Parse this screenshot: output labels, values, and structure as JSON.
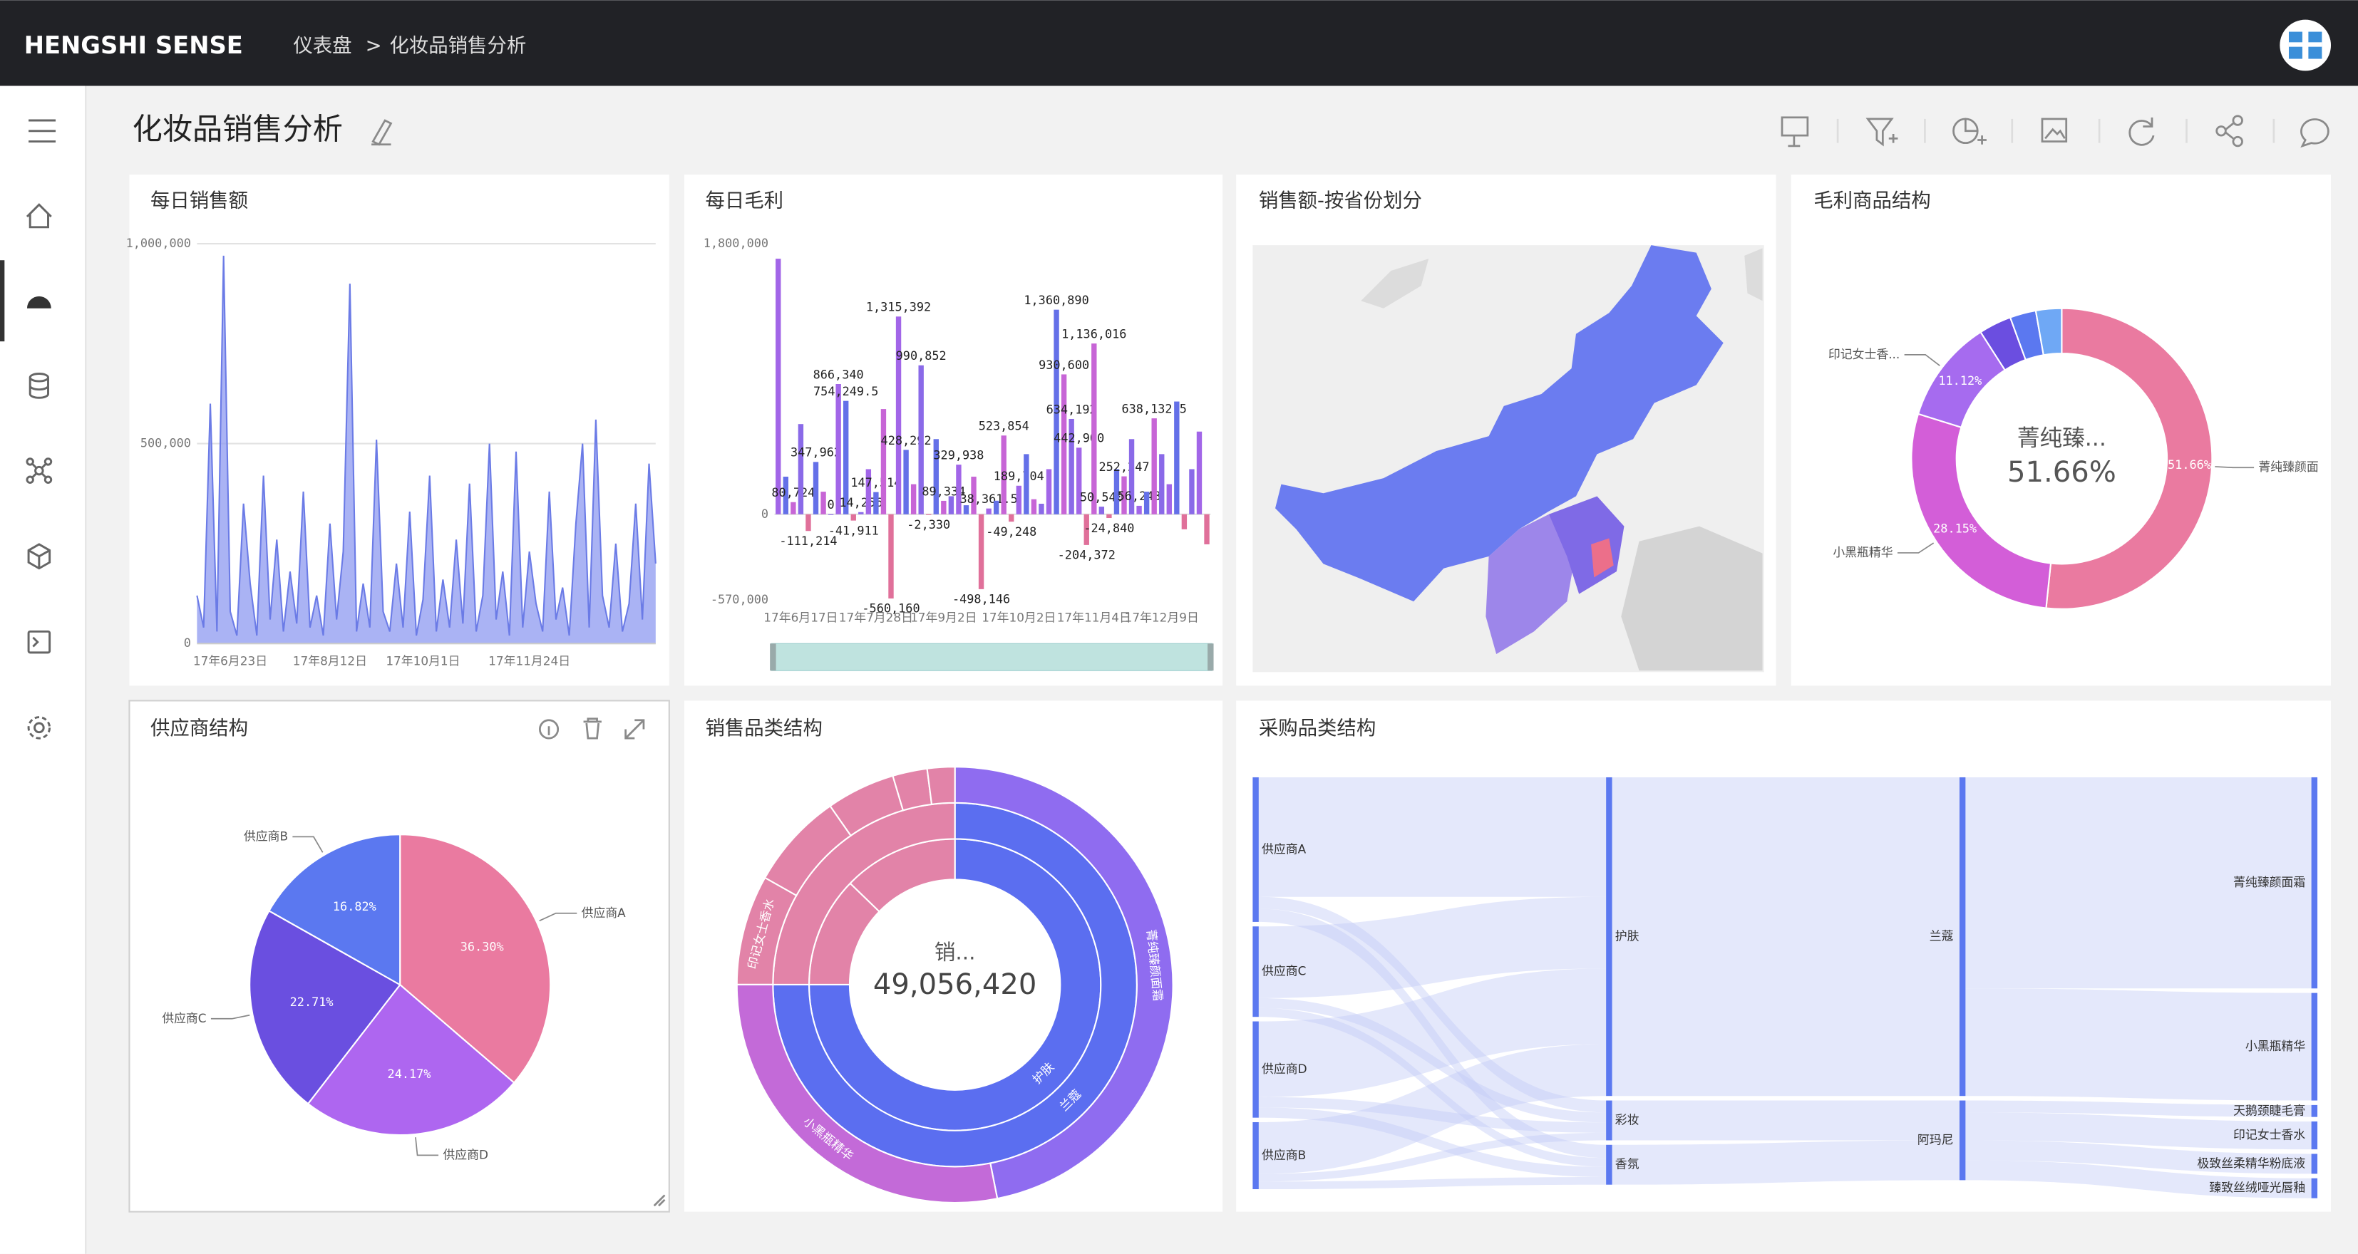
{
  "header": {
    "brand": "HENGSHI SENSE",
    "breadcrumb": [
      "仪表盘",
      "化妆品销售分析"
    ],
    "separator": ">"
  },
  "page": {
    "title": "化妆品销售分析"
  },
  "widgets": [
    {
      "title": "每日销售额",
      "chart": {
        "type": "area",
        "color": "#8d9af0",
        "line_color": "#6b7be6",
        "ylim": [
          0,
          1000000
        ],
        "yticks": [
          0,
          {
            "value": 500000,
            "label": "500,000"
          },
          {
            "value": 1000000,
            "label": "1,000,000"
          }
        ],
        "grid": true,
        "categories": [
          null,
          null,
          null,
          null,
          null,
          "17年6月23日",
          null,
          null,
          null,
          null,
          null,
          null,
          null,
          null,
          null,
          null,
          null,
          null,
          null,
          null,
          "17年8月12日",
          null,
          null,
          null,
          null,
          null,
          null,
          null,
          null,
          null,
          null,
          null,
          null,
          null,
          "17年10月1日",
          null,
          null,
          null,
          null,
          null,
          null,
          null,
          null,
          null,
          null,
          null,
          null,
          null,
          null,
          null,
          "17年11月24日",
          null,
          null,
          null,
          null,
          null,
          null,
          null,
          null,
          null,
          null,
          null,
          null,
          null,
          null,
          null,
          null,
          null,
          null,
          null
        ],
        "values": [
          120000,
          40000,
          600000,
          30000,
          970000,
          80000,
          20000,
          350000,
          150000,
          20000,
          420000,
          60000,
          260000,
          30000,
          180000,
          50000,
          380000,
          40000,
          120000,
          20000,
          300000,
          60000,
          230000,
          900000,
          30000,
          150000,
          40000,
          510000,
          80000,
          30000,
          200000,
          40000,
          330000,
          20000,
          110000,
          420000,
          30000,
          160000,
          40000,
          260000,
          50000,
          400000,
          30000,
          120000,
          500000,
          60000,
          180000,
          20000,
          480000,
          40000,
          230000,
          100000,
          30000,
          380000,
          60000,
          140000,
          20000,
          300000,
          500000,
          40000,
          560000,
          120000,
          40000,
          250000,
          30000,
          100000,
          350000,
          60000,
          450000,
          200000
        ]
      }
    },
    {
      "title": "每日毛利",
      "chart": {
        "type": "bar",
        "colors": [
          "#a266e8",
          "#6470e8",
          "#c765d6",
          "#8a6ae8"
        ],
        "negative_color": "#e0709a",
        "ylim": [
          -570000,
          1800000
        ],
        "yticks": [
          {
            "value": -570000,
            "label": "-570,000"
          },
          0,
          {
            "value": 1800000,
            "label": "1,800,000"
          }
        ],
        "categories": [
          null,
          null,
          null,
          "17年6月17日",
          null,
          null,
          null,
          null,
          null,
          null,
          null,
          null,
          null,
          "17年7月28日",
          null,
          null,
          null,
          null,
          null,
          null,
          null,
          null,
          "17年9月2日",
          null,
          null,
          null,
          null,
          null,
          null,
          null,
          null,
          null,
          "17年10月2日",
          null,
          null,
          null,
          null,
          null,
          null,
          null,
          null,
          null,
          "17年11月4日",
          null,
          null,
          null,
          null,
          null,
          null,
          null,
          null,
          "17年12月9日",
          null,
          null,
          null,
          null,
          null,
          null
        ],
        "values": [
          1700000,
          250000,
          80724,
          600000,
          -111214,
          347962,
          150000,
          0,
          866340,
          754249.5,
          -41911,
          14256,
          300000,
          147514,
          700000,
          -560160,
          1315392,
          428292,
          200000,
          990852,
          -2330,
          500000,
          89334,
          120000,
          329938,
          60000,
          250000,
          -498146,
          38361.5,
          90000,
          523854,
          -49248,
          189704,
          400000,
          100000,
          70000,
          300000,
          1360890,
          930600,
          634192,
          442900,
          -204372,
          1136016,
          50540,
          -24840,
          300000,
          252247,
          500000,
          56248,
          150000,
          638132.5,
          400000,
          200000,
          750000,
          -100000,
          300000,
          550000,
          -200000
        ],
        "value_labels": [
          null,
          null,
          "80,724",
          null,
          "-111,214",
          "347,962",
          null,
          "0",
          "866,340",
          "754,249.5",
          "-41,911",
          "14,256",
          null,
          "147,514",
          null,
          "-560,160",
          "1,315,392",
          "428,292",
          null,
          "990,852",
          "-2,330",
          null,
          "89,334",
          null,
          "329,938",
          null,
          null,
          "-498,146",
          "38,361.5",
          null,
          "523,854",
          "-49,248",
          "189,704",
          null,
          null,
          null,
          null,
          "1,360,890",
          "930,600",
          "634,192",
          "442,900",
          "-204,372",
          "1,136,016",
          "50,540",
          "-24,840",
          null,
          "252,247",
          null,
          "56,248",
          null,
          "638,132.5",
          null,
          null,
          null,
          null,
          null,
          null,
          null
        ]
      }
    },
    {
      "title": "销售额-按省份划分",
      "chart": {
        "type": "map"
      }
    },
    {
      "title": "毛利商品结构",
      "chart": {
        "type": "donut",
        "names": [
          "菁纯臻颜面",
          "小黑瓶精华",
          "印记女士香...",
          null,
          null,
          null
        ],
        "values": [
          51.66,
          28.15,
          11.12,
          3.5,
          2.8,
          2.77
        ],
        "value_labels": [
          "51.66%",
          "28.15%",
          "11.12%",
          null,
          null,
          null
        ],
        "colors": [
          "#ea7aa0",
          "#d35ed8",
          "#a66bef",
          "#6b4ee0",
          "#5b78f0",
          "#6fa8f5"
        ],
        "center_label": "菁纯臻..."
      }
    },
    {
      "title": "供应商结构",
      "chart": {
        "type": "pie",
        "names": [
          "供应商A",
          "供应商D",
          "供应商C",
          "供应商B"
        ],
        "values": [
          36.3,
          24.17,
          22.71,
          16.82
        ],
        "value_labels": [
          "36.30%",
          "24.17%",
          "22.71%",
          "16.82%"
        ],
        "colors": [
          "#ea7aa0",
          "#ae66f0",
          "#6a4fe0",
          "#5b78f0"
        ]
      }
    },
    {
      "title": "销售品类结构",
      "chart": {
        "type": "sunburst",
        "center_label": "销...",
        "center_value": 49056420,
        "center_value_label": "49,056,420",
        "rings": [
          [
            {
              "name": "护肤",
              "value": 36800000,
              "color": "#5b6ef0"
            },
            {
              "name": null,
              "value": 6000000,
              "color": "#e283a8"
            },
            {
              "name": null,
              "value": 6256420,
              "color": "#e283a8"
            }
          ],
          [
            {
              "name": "兰蔻",
              "value": 36800000,
              "color": "#5b6ef0"
            },
            {
              "name": null,
              "value": 12256420,
              "color": "#e283a8"
            }
          ],
          [
            {
              "name": "菁纯臻颜面霜",
              "value": 23000000,
              "color": "#8f6cf0"
            },
            {
              "name": "小黑瓶精华",
              "value": 13800000,
              "color": "#c36ad8"
            },
            {
              "name": "印记女士香水",
              "value": 4000000,
              "color": "#e283a8"
            },
            {
              "name": null,
              "value": 3500000,
              "color": "#e283a8"
            },
            {
              "name": null,
              "value": 2500000,
              "color": "#e283a8"
            },
            {
              "name": null,
              "value": 1256420,
              "color": "#e283a8"
            },
            {
              "name": null,
              "value": 1000000,
              "color": "#e283a8"
            }
          ]
        ]
      }
    },
    {
      "title": "采购品类结构",
      "chart": {
        "type": "sankey",
        "levels": [
          [
            "供应商A",
            "供应商C",
            "供应商D",
            "供应商B"
          ],
          [
            "护肤",
            "彩妆",
            "香氛"
          ],
          [
            "兰蔻",
            "阿玛尼"
          ],
          [
            "菁纯臻颜面霜",
            "小黑瓶精华",
            "天鹅颈睫毛膏",
            "印记女士香水",
            "极致丝柔精华粉底液",
            "臻致丝绒哑光唇釉"
          ]
        ],
        "links": [
          {
            "source": "供应商A",
            "target": "护肤",
            "value": 30
          },
          {
            "source": "供应商A",
            "target": "彩妆",
            "value": 3
          },
          {
            "source": "供应商A",
            "target": "香氛",
            "value": 3.3
          },
          {
            "source": "供应商C",
            "target": "护肤",
            "value": 18
          },
          {
            "source": "供应商C",
            "target": "彩妆",
            "value": 2.5
          },
          {
            "source": "供应商C",
            "target": "香氛",
            "value": 2.21
          },
          {
            "source": "供应商D",
            "target": "护肤",
            "value": 19
          },
          {
            "source": "供应商D",
            "target": "彩妆",
            "value": 2.6
          },
          {
            "source": "供应商D",
            "target": "香氛",
            "value": 2.57
          },
          {
            "source": "供应商B",
            "target": "护肤",
            "value": 13
          },
          {
            "source": "供应商B",
            "target": "彩妆",
            "value": 1.9
          },
          {
            "source": "供应商B",
            "target": "香氛",
            "value": 1.92
          },
          {
            "source": "护肤",
            "target": "兰蔻",
            "value": 80
          },
          {
            "source": "彩妆",
            "target": "阿玛尼",
            "value": 10
          },
          {
            "source": "香氛",
            "target": "阿玛尼",
            "value": 10
          },
          {
            "source": "兰蔻",
            "target": "菁纯臻颜面霜",
            "value": 53
          },
          {
            "source": "兰蔻",
            "target": "小黑瓶精华",
            "value": 27
          },
          {
            "source": "阿玛尼",
            "target": "天鹅颈睫毛膏",
            "value": 3
          },
          {
            "source": "阿玛尼",
            "target": "印记女士香水",
            "value": 7
          },
          {
            "source": "阿玛尼",
            "target": "极致丝柔精华粉底液",
            "value": 5
          },
          {
            "source": "阿玛尼",
            "target": "臻致丝绒哑光唇釉",
            "value": 5
          }
        ],
        "node_color": "#5b78f0",
        "link_color": "#c3cdf6"
      }
    }
  ]
}
